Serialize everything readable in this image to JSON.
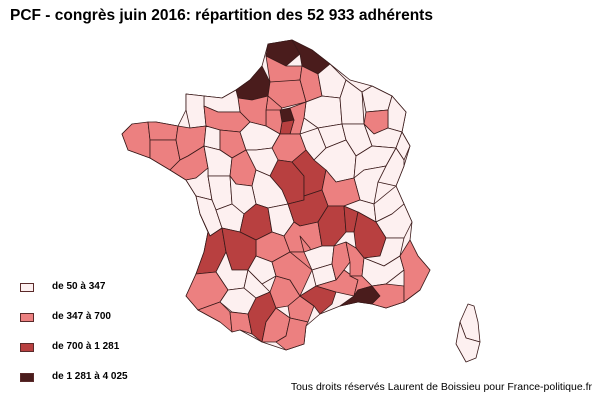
{
  "title": "PCF - congrès juin 2016: répartition des 52 933 adhérents",
  "legend": {
    "items": [
      {
        "label": "de 50 à 347",
        "color": "#fdf0f0"
      },
      {
        "label": "de 347 à 700",
        "color": "#ec8080"
      },
      {
        "label": "de 700 à 1 281",
        "color": "#b84040"
      },
      {
        "label": "de 1 281 à 4 025",
        "color": "#4a1c1c"
      }
    ]
  },
  "credit": "Tous droits réservés Laurent de Boissieu pour France-politique.fr",
  "map": {
    "type": "choropleth",
    "region": "France métropolitaine - départements",
    "classes_colors": [
      "#fdf0f0",
      "#ec8080",
      "#b84040",
      "#4a1c1c"
    ]
  }
}
